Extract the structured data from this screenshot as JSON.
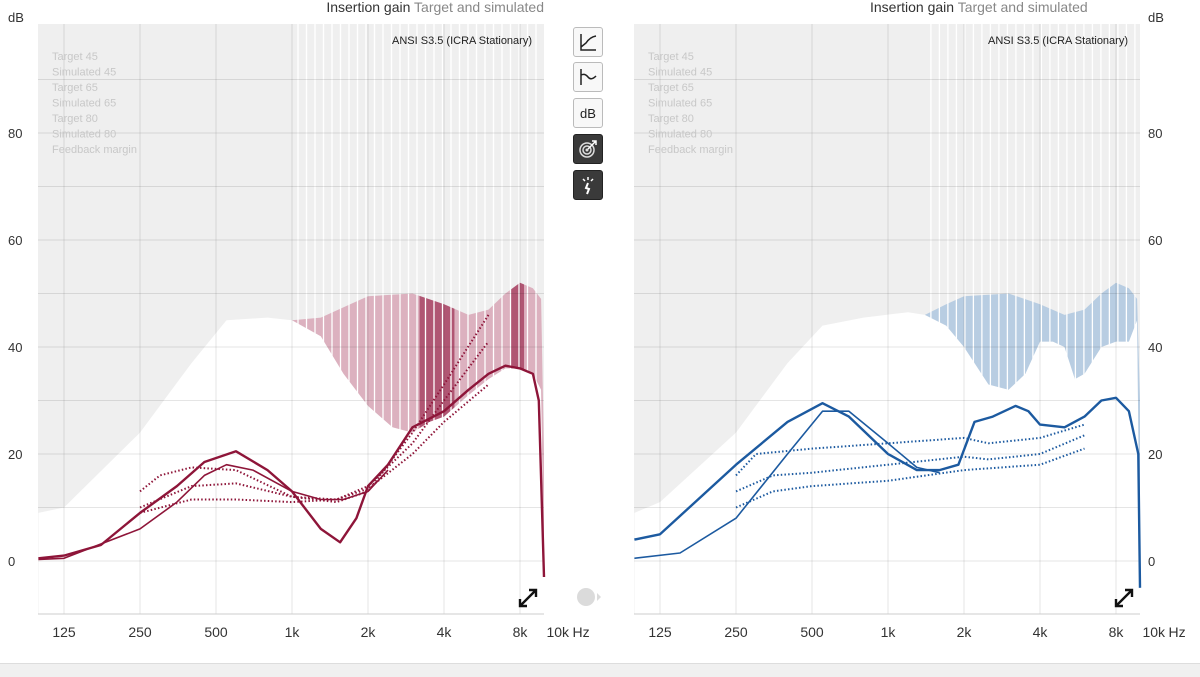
{
  "toolbar": {
    "buttons": [
      {
        "name": "io-curve-button",
        "label": ""
      },
      {
        "name": "frequency-response-button",
        "label": ""
      },
      {
        "name": "db-button",
        "label": "dB"
      },
      {
        "name": "target-button",
        "label": ""
      },
      {
        "name": "feedback-button",
        "label": ""
      }
    ]
  },
  "chart_data": [
    {
      "type": "line",
      "side": "left",
      "title_part1": "Insertion gain",
      "title_part2": "Target and simulated",
      "ylabel": "dB",
      "xlabel": "Hz",
      "standard": "ANSI S3.5 (ICRA Stationary)",
      "legend": [
        "Target 45",
        "Simulated 45",
        "Target 65",
        "Simulated 65",
        "Target 80",
        "Simulated 80",
        "Feedback margin"
      ],
      "xlim": [
        99,
        10500
      ],
      "ylim": [
        -10,
        100
      ],
      "yticks": [
        0,
        20,
        40,
        60,
        80
      ],
      "xticks": [
        {
          "f": 125,
          "l": "125"
        },
        {
          "f": 250,
          "l": "250"
        },
        {
          "f": 500,
          "l": "500"
        },
        {
          "f": 1000,
          "l": "1k"
        },
        {
          "f": 2000,
          "l": "2k"
        },
        {
          "f": 4000,
          "l": "4k"
        },
        {
          "f": 8000,
          "l": "8k"
        },
        {
          "f": 10000,
          "l": "10k"
        }
      ],
      "color": "#8e1539",
      "band_color": "#dcb1bf",
      "band_dark": "#b05673",
      "dark_ranges": [
        [
          3200,
          4400
        ],
        [
          7300,
          8300
        ]
      ],
      "max_curve": [
        [
          99,
          9
        ],
        [
          125,
          10
        ],
        [
          250,
          24
        ],
        [
          400,
          37
        ],
        [
          550,
          45
        ],
        [
          800,
          45.5
        ],
        [
          1000,
          45
        ]
      ],
      "band_upper": [
        [
          1000,
          45
        ],
        [
          1300,
          45.5
        ],
        [
          1700,
          48
        ],
        [
          2000,
          49.5
        ],
        [
          3000,
          50
        ],
        [
          4000,
          48
        ],
        [
          5000,
          46
        ],
        [
          6000,
          47
        ],
        [
          7000,
          50
        ],
        [
          8000,
          52
        ],
        [
          9000,
          51
        ],
        [
          9700,
          49
        ],
        [
          10000,
          20
        ]
      ],
      "band_lower": [
        [
          1000,
          45
        ],
        [
          1300,
          42
        ],
        [
          1600,
          35
        ],
        [
          2000,
          29
        ],
        [
          2500,
          25
        ],
        [
          3000,
          24
        ],
        [
          3500,
          26
        ],
        [
          4000,
          27
        ],
        [
          5000,
          31
        ],
        [
          6000,
          34
        ],
        [
          7000,
          36
        ],
        [
          8000,
          36
        ],
        [
          9000,
          35
        ],
        [
          9700,
          32
        ],
        [
          10000,
          -3
        ]
      ],
      "solid": [
        [
          [
            99,
            0.5
          ],
          [
            125,
            1
          ],
          [
            175,
            3
          ],
          [
            250,
            9
          ],
          [
            350,
            14
          ],
          [
            450,
            18.5
          ],
          [
            600,
            20.5
          ],
          [
            800,
            17
          ],
          [
            1000,
            13
          ],
          [
            1300,
            6
          ],
          [
            1550,
            3.5
          ],
          [
            1800,
            8
          ],
          [
            2000,
            14
          ],
          [
            2400,
            18
          ],
          [
            3000,
            25
          ],
          [
            4000,
            28
          ],
          [
            5000,
            32
          ],
          [
            6000,
            35
          ],
          [
            7000,
            36.5
          ],
          [
            8000,
            36
          ],
          [
            9000,
            35
          ],
          [
            9500,
            30
          ],
          [
            10000,
            -3
          ]
        ],
        [
          [
            99,
            0.3
          ],
          [
            125,
            0.5
          ],
          [
            250,
            6
          ],
          [
            350,
            11
          ],
          [
            450,
            16
          ],
          [
            550,
            18
          ],
          [
            700,
            17
          ],
          [
            1000,
            13
          ],
          [
            1300,
            11.5
          ],
          [
            1600,
            11.5
          ],
          [
            2000,
            13
          ],
          [
            2400,
            17
          ]
        ]
      ],
      "dotted": [
        [
          [
            250,
            13
          ],
          [
            300,
            16
          ],
          [
            400,
            17.5
          ],
          [
            600,
            17
          ],
          [
            1000,
            12
          ],
          [
            1500,
            11
          ],
          [
            2000,
            13
          ],
          [
            3000,
            24
          ],
          [
            4000,
            33
          ],
          [
            6000,
            46
          ]
        ],
        [
          [
            250,
            10
          ],
          [
            400,
            14
          ],
          [
            600,
            14.5
          ],
          [
            1000,
            12
          ],
          [
            1500,
            11.5
          ],
          [
            2000,
            14
          ],
          [
            3000,
            22
          ],
          [
            4000,
            30
          ],
          [
            6000,
            41
          ]
        ],
        [
          [
            250,
            9
          ],
          [
            400,
            11.5
          ],
          [
            600,
            11.5
          ],
          [
            1000,
            11
          ],
          [
            1500,
            11.5
          ],
          [
            2000,
            13.5
          ],
          [
            3000,
            20
          ],
          [
            4000,
            26
          ],
          [
            6000,
            33
          ]
        ]
      ]
    },
    {
      "type": "line",
      "side": "right",
      "title_part1": "Insertion gain",
      "title_part2": "Target and simulated",
      "ylabel": "dB",
      "xlabel": "Hz",
      "standard": "ANSI S3.5 (ICRA Stationary)",
      "legend": [
        "Target 45",
        "Simulated 45",
        "Target 65",
        "Simulated 65",
        "Target 80",
        "Simulated 80",
        "Feedback margin"
      ],
      "xlim": [
        99,
        10500
      ],
      "ylim": [
        -10,
        100
      ],
      "yticks": [
        0,
        20,
        40,
        60,
        80
      ],
      "xticks": [
        {
          "f": 125,
          "l": "125"
        },
        {
          "f": 250,
          "l": "250"
        },
        {
          "f": 500,
          "l": "500"
        },
        {
          "f": 1000,
          "l": "1k"
        },
        {
          "f": 2000,
          "l": "2k"
        },
        {
          "f": 4000,
          "l": "4k"
        },
        {
          "f": 8000,
          "l": "8k"
        },
        {
          "f": 10000,
          "l": "10k"
        }
      ],
      "color": "#1c5aa0",
      "band_color": "#b8cde2",
      "band_dark": "#b8cde2",
      "dark_ranges": [],
      "max_curve": [
        [
          99,
          9
        ],
        [
          125,
          11
        ],
        [
          250,
          24
        ],
        [
          400,
          37
        ],
        [
          550,
          44
        ],
        [
          800,
          45.5
        ],
        [
          1200,
          46.5
        ],
        [
          1400,
          46
        ]
      ],
      "band_upper": [
        [
          1400,
          46
        ],
        [
          1700,
          48
        ],
        [
          2000,
          49.5
        ],
        [
          3000,
          50
        ],
        [
          4000,
          48
        ],
        [
          5000,
          46
        ],
        [
          6000,
          47
        ],
        [
          7000,
          50
        ],
        [
          8000,
          52
        ],
        [
          9000,
          51
        ],
        [
          9700,
          49
        ],
        [
          10000,
          30
        ]
      ],
      "band_lower": [
        [
          1400,
          46
        ],
        [
          1700,
          44
        ],
        [
          2000,
          40
        ],
        [
          2500,
          33
        ],
        [
          3000,
          32
        ],
        [
          3500,
          35
        ],
        [
          4000,
          41
        ],
        [
          4500,
          41
        ],
        [
          5000,
          40
        ],
        [
          5500,
          34
        ],
        [
          6000,
          35
        ],
        [
          7000,
          40
        ],
        [
          8000,
          41
        ],
        [
          9000,
          41
        ],
        [
          9700,
          45
        ],
        [
          10000,
          -5
        ]
      ],
      "solid": [
        [
          [
            99,
            4
          ],
          [
            125,
            5
          ],
          [
            250,
            18
          ],
          [
            400,
            26
          ],
          [
            550,
            29.5
          ],
          [
            700,
            27
          ],
          [
            1000,
            20
          ],
          [
            1300,
            17
          ],
          [
            1600,
            17
          ],
          [
            1900,
            18
          ],
          [
            2200,
            26
          ],
          [
            2600,
            27
          ],
          [
            3200,
            29
          ],
          [
            3600,
            28
          ],
          [
            4000,
            25.5
          ],
          [
            5000,
            25
          ],
          [
            6000,
            27
          ],
          [
            7000,
            30
          ],
          [
            8000,
            30.5
          ],
          [
            9000,
            28
          ],
          [
            9800,
            20
          ],
          [
            10000,
            -5
          ]
        ],
        [
          [
            99,
            0.5
          ],
          [
            150,
            1.5
          ],
          [
            250,
            8
          ],
          [
            400,
            20
          ],
          [
            550,
            28
          ],
          [
            700,
            28
          ],
          [
            1000,
            22
          ],
          [
            1300,
            17.5
          ],
          [
            1600,
            16.5
          ]
        ]
      ],
      "dotted": [
        [
          [
            250,
            16
          ],
          [
            300,
            20
          ],
          [
            500,
            21
          ],
          [
            1000,
            22
          ],
          [
            2000,
            23
          ],
          [
            2500,
            22
          ],
          [
            4000,
            23
          ],
          [
            6000,
            25.5
          ]
        ],
        [
          [
            250,
            13
          ],
          [
            350,
            16
          ],
          [
            500,
            16.5
          ],
          [
            1000,
            18
          ],
          [
            2000,
            19.5
          ],
          [
            2500,
            19
          ],
          [
            4000,
            20
          ],
          [
            6000,
            23.5
          ]
        ],
        [
          [
            250,
            10
          ],
          [
            350,
            13
          ],
          [
            500,
            14
          ],
          [
            1000,
            15
          ],
          [
            2000,
            17
          ],
          [
            4000,
            18
          ],
          [
            6000,
            21
          ]
        ]
      ]
    }
  ]
}
